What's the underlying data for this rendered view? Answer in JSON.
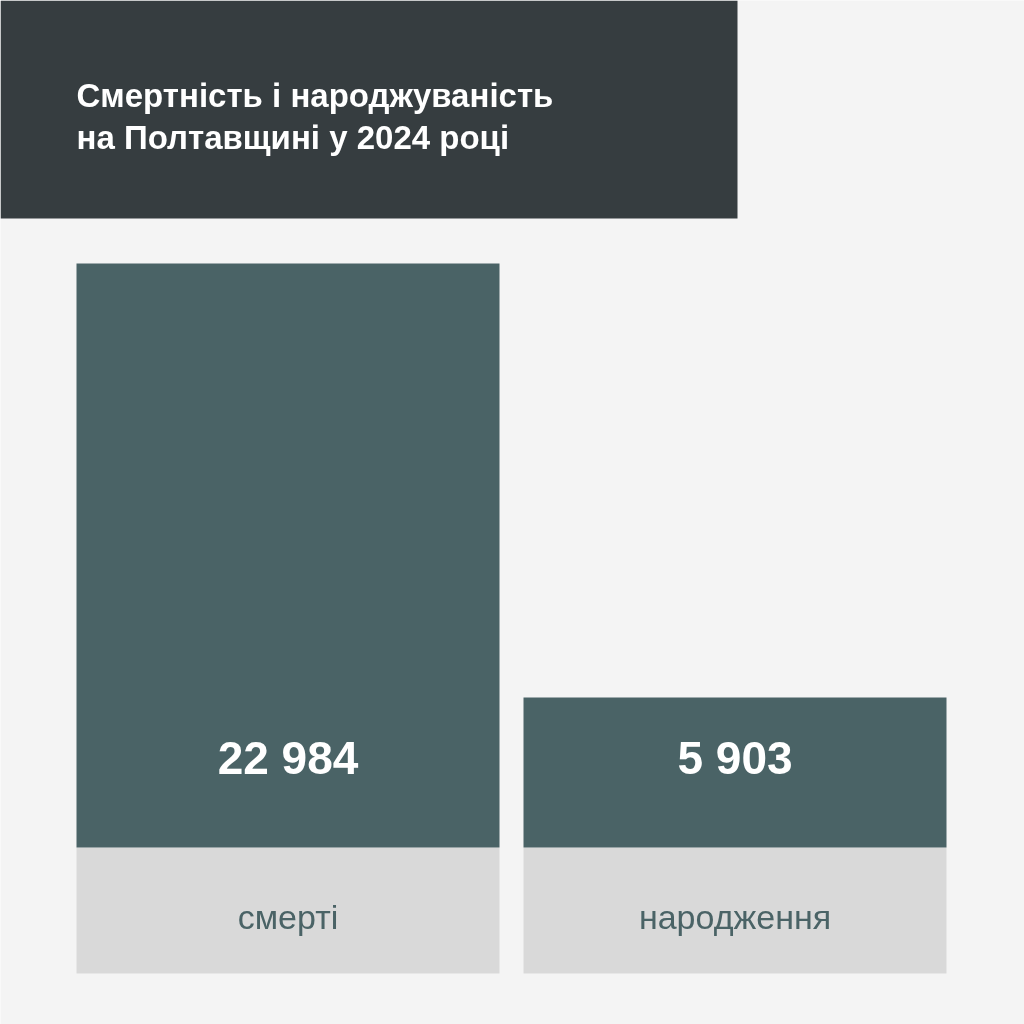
{
  "chart_data": {
    "type": "bar",
    "title": "Смертність і народжуваність на Полтавщині у 2024 році",
    "categories": [
      "смерті",
      "народження"
    ],
    "values": [
      22984,
      5903
    ],
    "color": "#4a6366",
    "value_labels": [
      "22 984",
      "5 903"
    ],
    "tick_labels": "x"
  }
}
